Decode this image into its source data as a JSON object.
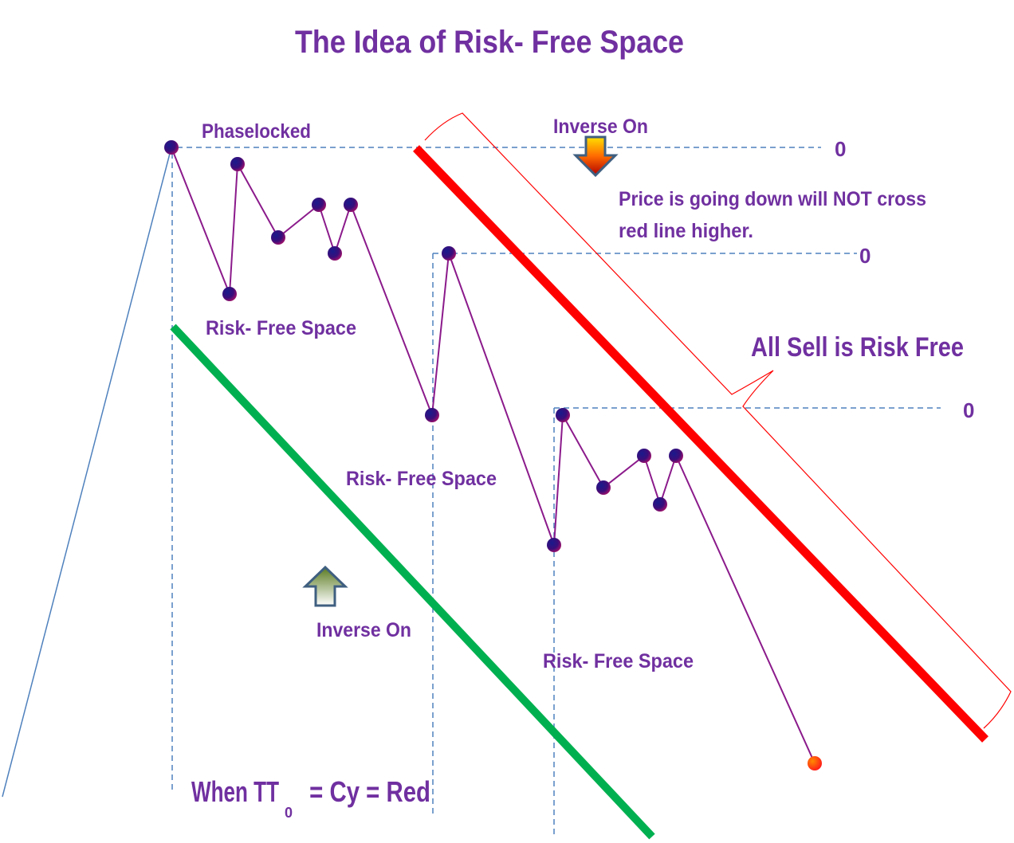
{
  "title": "The Idea of Risk- Free Space",
  "labels": {
    "phaselocked": "Phaselocked",
    "inverse_on_top": "Inverse On",
    "inverse_on_bottom": "Inverse On",
    "note_line1": "Price is going down will NOT cross",
    "note_line2": "red line higher.",
    "all_sell": "All Sell is Risk Free",
    "risk_free_1": "Risk- Free Space",
    "risk_free_2": "Risk- Free Space",
    "risk_free_3": "Risk- Free Space",
    "zero_1": "0",
    "zero_2": "0",
    "zero_3": "0",
    "formula_main": "When TT",
    "formula_sub": "0",
    "formula_rest": " = Cy = Red"
  },
  "colors": {
    "text": "#7030a0",
    "red_line": "#ff0000",
    "green_line": "#00b050",
    "dashed": "#4f81bd"
  }
}
